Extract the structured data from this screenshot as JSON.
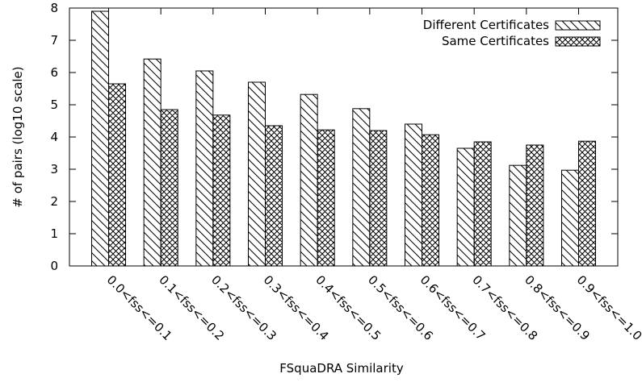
{
  "chart_data": {
    "type": "bar",
    "categories": [
      "0.0<fss<=0.1",
      "0.1<fss<=0.2",
      "0.2<fss<=0.3",
      "0.3<fss<=0.4",
      "0.4<fss<=0.5",
      "0.5<fss<=0.6",
      "0.6<fss<=0.7",
      "0.7<fss<=0.8",
      "0.8<fss<=0.9",
      "0.9<fss<=1.0"
    ],
    "series": [
      {
        "name": "Different Certificates",
        "pattern": "diagonal-hatch",
        "values": [
          7.9,
          6.42,
          6.05,
          5.7,
          5.32,
          4.88,
          4.4,
          3.65,
          3.12,
          2.97
        ]
      },
      {
        "name": "Same Certificates",
        "pattern": "cross-hatch",
        "values": [
          5.65,
          4.85,
          4.68,
          4.35,
          4.22,
          4.2,
          4.07,
          3.85,
          3.75,
          3.87
        ]
      }
    ],
    "title": "",
    "xlabel": "FSquaDRA Similarity",
    "ylabel": "# of pairs (log10 scale)",
    "ylim": [
      0,
      8
    ],
    "yticks": [
      0,
      1,
      2,
      3,
      4,
      5,
      6,
      7,
      8
    ],
    "grid": false,
    "legend_position": "top-right"
  }
}
